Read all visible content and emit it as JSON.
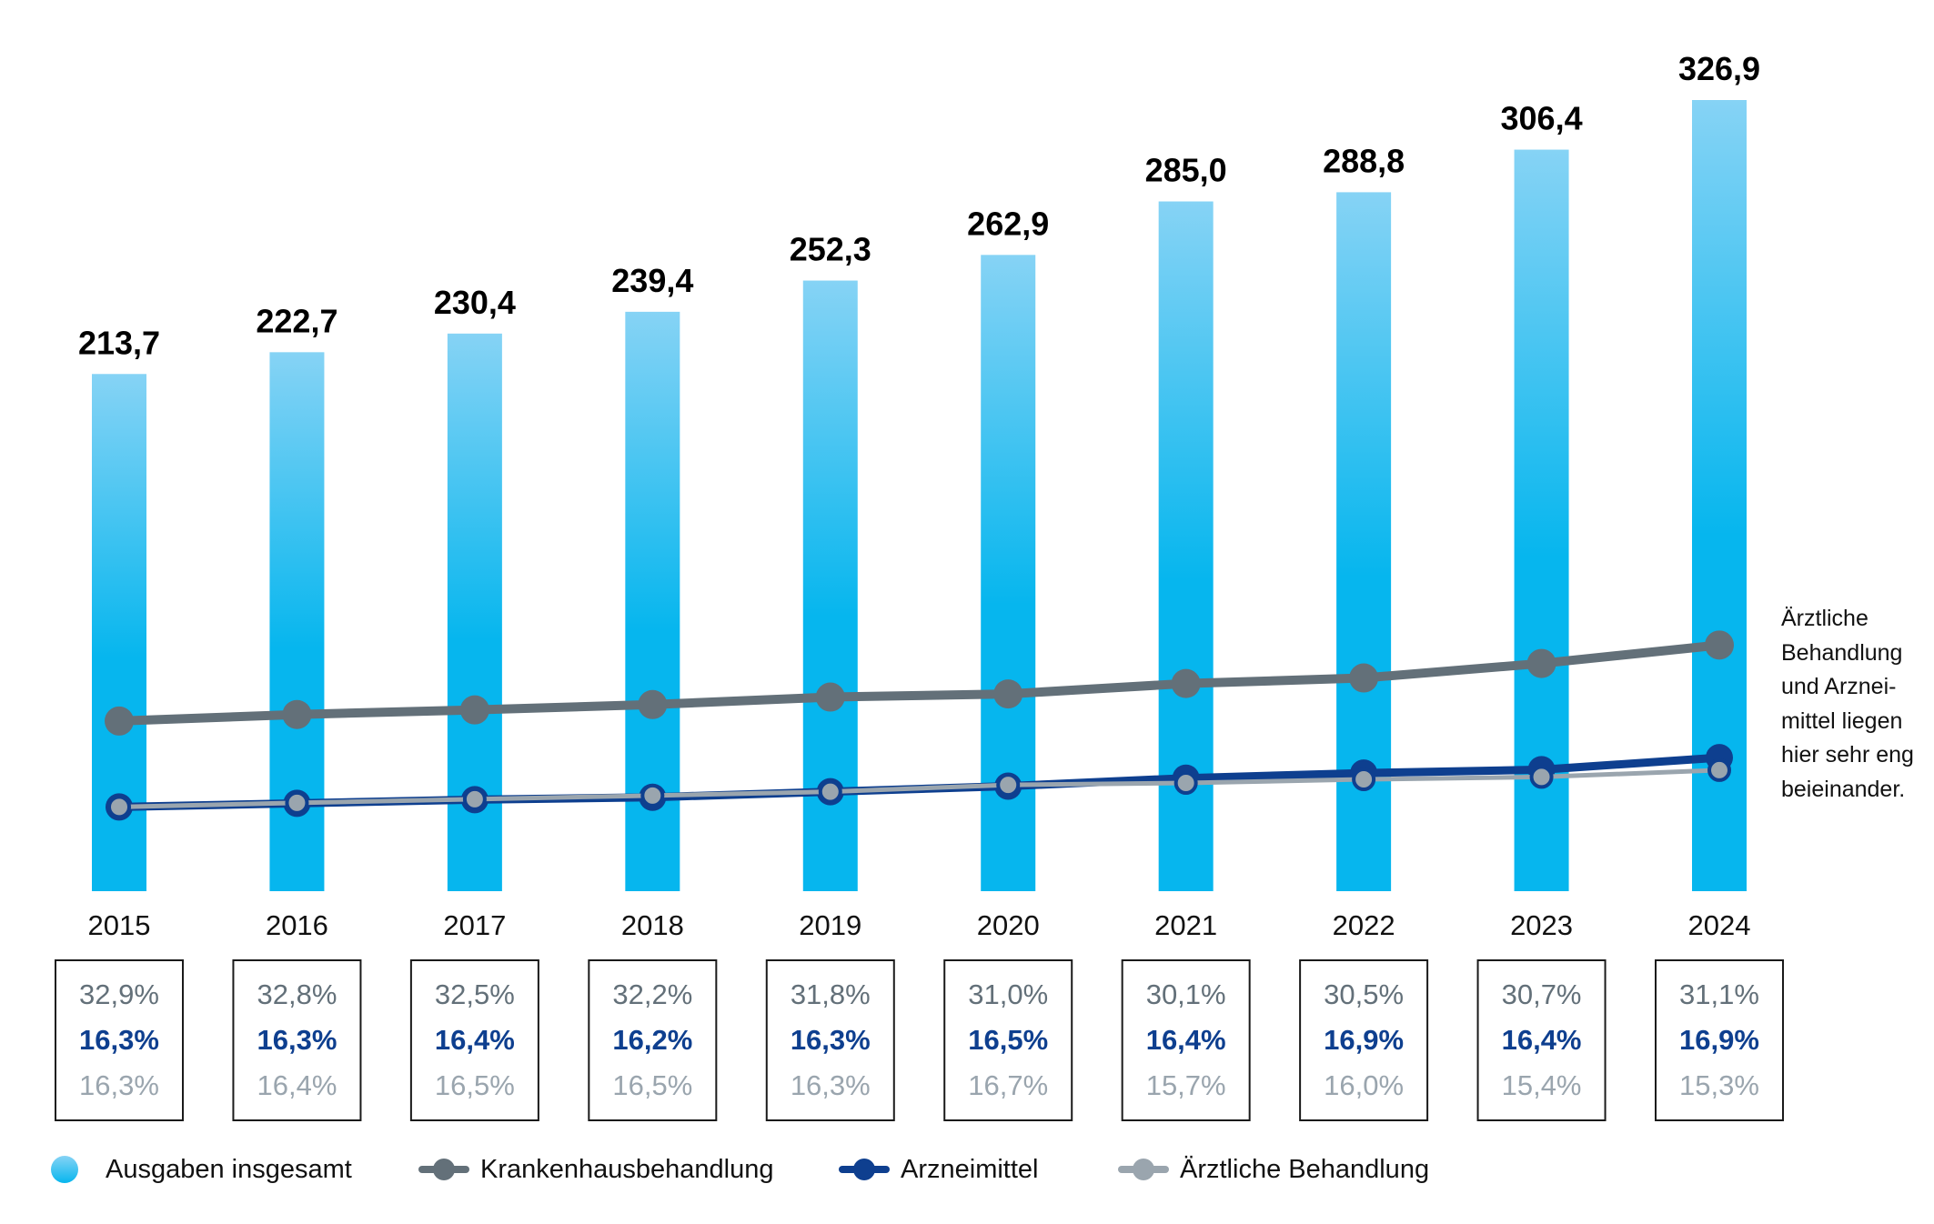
{
  "chart_data": {
    "type": "bar",
    "categories": [
      "2015",
      "2016",
      "2017",
      "2018",
      "2019",
      "2020",
      "2021",
      "2022",
      "2023",
      "2024"
    ],
    "series": [
      {
        "name": "Ausgaben insgesamt",
        "type": "bar",
        "values": [
          213.7,
          222.7,
          230.4,
          239.4,
          252.3,
          262.9,
          285.0,
          288.8,
          306.4,
          326.9
        ],
        "labels": [
          "213,7",
          "222,7",
          "230,4",
          "239,4",
          "252,3",
          "262,9",
          "285,0",
          "288,8",
          "306,4",
          "326,9"
        ],
        "color": "#06b6ee"
      },
      {
        "name": "Krankenhausbehandlung",
        "type": "line",
        "values": [
          70.3,
          73.0,
          74.9,
          77.1,
          80.2,
          81.5,
          85.8,
          88.1,
          94.1,
          101.7
        ],
        "color": "#637079"
      },
      {
        "name": "Arzneimittel",
        "type": "line",
        "values": [
          34.8,
          36.3,
          37.8,
          38.8,
          41.1,
          43.4,
          46.7,
          48.8,
          50.2,
          55.2
        ],
        "color": "#0e3f8f"
      },
      {
        "name": "Ärztliche Behandlung",
        "type": "line",
        "values": [
          34.8,
          36.5,
          38.0,
          39.5,
          41.1,
          43.9,
          44.7,
          46.2,
          47.2,
          50.0
        ],
        "color": "#9aa5ae"
      }
    ],
    "share_boxes": [
      {
        "year": "2015",
        "krankenhaus": "32,9%",
        "arznei": "16,3%",
        "aerztlich": "16,3%"
      },
      {
        "year": "2016",
        "krankenhaus": "32,8%",
        "arznei": "16,3%",
        "aerztlich": "16,4%"
      },
      {
        "year": "2017",
        "krankenhaus": "32,5%",
        "arznei": "16,4%",
        "aerztlich": "16,5%"
      },
      {
        "year": "2018",
        "krankenhaus": "32,2%",
        "arznei": "16,2%",
        "aerztlich": "16,5%"
      },
      {
        "year": "2019",
        "krankenhaus": "31,8%",
        "arznei": "16,3%",
        "aerztlich": "16,3%"
      },
      {
        "year": "2020",
        "krankenhaus": "31,0%",
        "arznei": "16,5%",
        "aerztlich": "16,7%"
      },
      {
        "year": "2021",
        "krankenhaus": "30,1%",
        "arznei": "16,4%",
        "aerztlich": "15,7%"
      },
      {
        "year": "2022",
        "krankenhaus": "30,5%",
        "arznei": "16,9%",
        "aerztlich": "16,0%"
      },
      {
        "year": "2023",
        "krankenhaus": "30,7%",
        "arznei": "16,4%",
        "aerztlich": "15,4%"
      },
      {
        "year": "2024",
        "krankenhaus": "31,1%",
        "arznei": "16,9%",
        "aerztlich": "15,3%"
      }
    ],
    "annotation": [
      "Ärztliche",
      "Behandlung",
      "und Arznei-",
      "mittel liegen",
      "hier sehr eng",
      "beieinander."
    ],
    "ylim": [
      0,
      326.9
    ],
    "grid": false,
    "legend_position": "bottom",
    "bar_gradient": {
      "top": "#86d3f5",
      "bottom": "#06b6ee"
    }
  },
  "legend": {
    "items": [
      {
        "label": "Ausgaben insgesamt"
      },
      {
        "label": "Krankenhausbehandlung"
      },
      {
        "label": "Arzneimittel"
      },
      {
        "label": "Ärztliche Behandlung"
      }
    ]
  }
}
